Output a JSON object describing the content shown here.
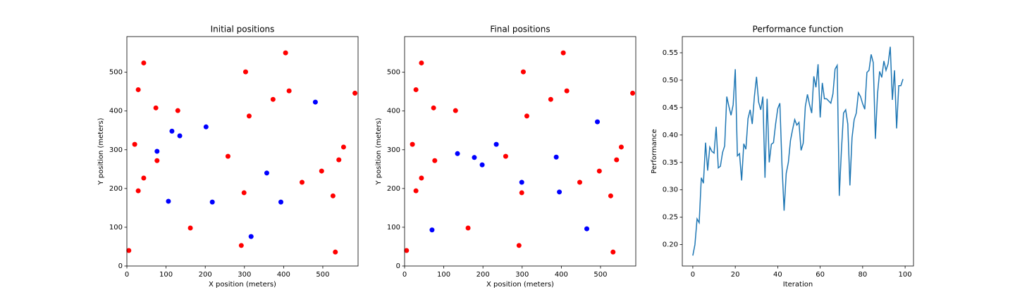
{
  "chart_data": [
    {
      "type": "scatter",
      "title": "Initial positions",
      "xlabel": "X position (meters)",
      "ylabel": "Y position (meters)",
      "xlim": [
        0,
        590
      ],
      "ylim": [
        0,
        592
      ],
      "xticks": [
        0,
        100,
        200,
        300,
        400,
        500
      ],
      "yticks": [
        0,
        100,
        200,
        300,
        400,
        500
      ],
      "series": [
        {
          "color": "#ff0000",
          "x": [
            5,
            20,
            29,
            29,
            43,
            43,
            74,
            77,
            130,
            162,
            258,
            292,
            299,
            303,
            312,
            373,
            405,
            414,
            447,
            497,
            526,
            532,
            541,
            553,
            582
          ],
          "values": [
            40,
            314,
            194,
            455,
            524,
            227,
            408,
            272,
            401,
            98,
            283,
            53,
            189,
            501,
            387,
            430,
            550,
            452,
            216,
            245,
            181,
            36,
            274,
            307,
            446
          ]
        },
        {
          "color": "#0000ff",
          "x": [
            77,
            106,
            115,
            135,
            202,
            218,
            317,
            357,
            393,
            481
          ],
          "values": [
            296,
            167,
            348,
            336,
            359,
            165,
            76,
            240,
            165,
            423
          ]
        }
      ]
    },
    {
      "type": "scatter",
      "title": "Final positions",
      "xlabel": "X position (meters)",
      "ylabel": "Y position (meters)",
      "xlim": [
        0,
        590
      ],
      "ylim": [
        0,
        592
      ],
      "xticks": [
        0,
        100,
        200,
        300,
        400,
        500
      ],
      "yticks": [
        0,
        100,
        200,
        300,
        400,
        500
      ],
      "series": [
        {
          "color": "#ff0000",
          "x": [
            5,
            20,
            29,
            29,
            43,
            43,
            74,
            77,
            130,
            162,
            258,
            292,
            299,
            303,
            312,
            373,
            405,
            414,
            447,
            497,
            526,
            532,
            541,
            553,
            582
          ],
          "values": [
            40,
            314,
            194,
            455,
            524,
            227,
            408,
            272,
            401,
            98,
            283,
            53,
            189,
            501,
            387,
            430,
            550,
            452,
            216,
            245,
            181,
            36,
            274,
            307,
            446
          ]
        },
        {
          "color": "#0000ff",
          "x": [
            70,
            135,
            178,
            198,
            234,
            299,
            387,
            395,
            465,
            492
          ],
          "values": [
            93,
            290,
            280,
            261,
            314,
            216,
            281,
            191,
            96,
            372
          ]
        }
      ]
    },
    {
      "type": "line",
      "title": "Performance function",
      "xlabel": "Iteration",
      "ylabel": "Performance",
      "xlim": [
        -4.95,
        103.95
      ],
      "ylim": [
        0.161,
        0.5795
      ],
      "xticks": [
        0,
        20,
        40,
        60,
        80,
        100
      ],
      "yticks": [
        {
          "value": 0.2,
          "label": "0.20"
        },
        0.25,
        {
          "value": 0.3,
          "label": "0.30"
        },
        0.35,
        {
          "value": 0.4,
          "label": "0.40"
        },
        0.45,
        {
          "value": 0.5,
          "label": "0.50"
        },
        0.55
      ],
      "series": [
        {
          "color": "#1f77b4",
          "x": [
            0,
            1,
            2,
            3,
            4,
            5,
            6,
            7,
            8,
            9,
            10,
            11,
            12,
            13,
            14,
            15,
            16,
            17,
            18,
            19,
            20,
            21,
            22,
            23,
            24,
            25,
            26,
            27,
            28,
            29,
            30,
            31,
            32,
            33,
            34,
            35,
            36,
            37,
            38,
            39,
            40,
            41,
            42,
            43,
            44,
            45,
            46,
            47,
            48,
            49,
            50,
            51,
            52,
            53,
            54,
            55,
            56,
            57,
            58,
            59,
            60,
            61,
            62,
            63,
            64,
            65,
            66,
            67,
            68,
            69,
            70,
            71,
            72,
            73,
            74,
            75,
            76,
            77,
            78,
            79,
            80,
            81,
            82,
            83,
            84,
            85,
            86,
            87,
            88,
            89,
            90,
            91,
            92,
            93,
            94,
            95,
            96,
            97,
            98,
            99
          ],
          "values": [
            0.18,
            0.2,
            0.247,
            0.24,
            0.322,
            0.312,
            0.386,
            0.335,
            0.378,
            0.37,
            0.367,
            0.415,
            0.34,
            0.343,
            0.368,
            0.38,
            0.47,
            0.452,
            0.436,
            0.455,
            0.52,
            0.362,
            0.366,
            0.317,
            0.384,
            0.374,
            0.43,
            0.446,
            0.42,
            0.47,
            0.506,
            0.46,
            0.446,
            0.47,
            0.322,
            0.466,
            0.35,
            0.383,
            0.386,
            0.42,
            0.448,
            0.458,
            0.345,
            0.262,
            0.33,
            0.35,
            0.39,
            0.41,
            0.428,
            0.418,
            0.423,
            0.372,
            0.385,
            0.452,
            0.474,
            0.455,
            0.44,
            0.507,
            0.487,
            0.529,
            0.432,
            0.495,
            0.466,
            0.466,
            0.462,
            0.458,
            0.475,
            0.52,
            0.527,
            0.289,
            0.372,
            0.44,
            0.446,
            0.42,
            0.308,
            0.395,
            0.428,
            0.44,
            0.477,
            0.47,
            0.457,
            0.447,
            0.514,
            0.518,
            0.547,
            0.532,
            0.393,
            0.475,
            0.516,
            0.505,
            0.535,
            0.518,
            0.53,
            0.561,
            0.464,
            0.518,
            0.412,
            0.49,
            0.49,
            0.502
          ]
        }
      ]
    }
  ]
}
